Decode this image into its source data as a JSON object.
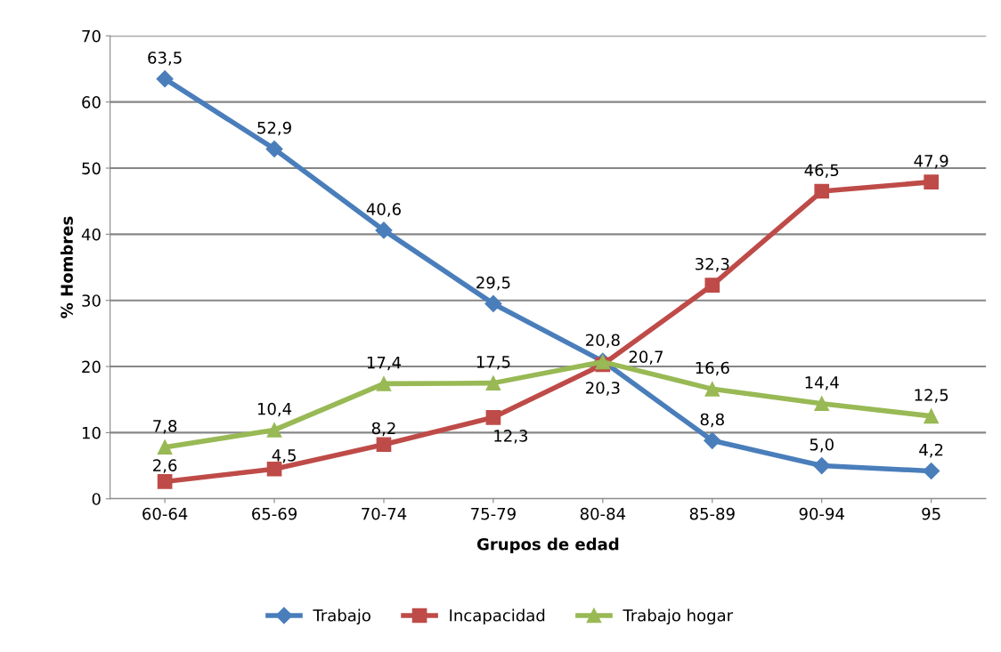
{
  "chart_data": {
    "type": "line",
    "xlabel": "Grupos de edad",
    "ylabel": "% Hombres",
    "categories": [
      "60-64",
      "65-69",
      "70-74",
      "75-79",
      "80-84",
      "85-89",
      "90-94",
      "95"
    ],
    "series": [
      {
        "name": "Trabajo",
        "color": "#4a7ebb",
        "marker": "diamond",
        "values": [
          63.5,
          52.9,
          40.6,
          29.5,
          20.8,
          8.8,
          5.0,
          4.2
        ],
        "value_labels": [
          "63,5",
          "52,9",
          "40,6",
          "29,5",
          "20,8",
          "8,8",
          "5,0",
          "4,2"
        ]
      },
      {
        "name": "Incapacidad",
        "color": "#be4b48",
        "marker": "square",
        "values": [
          2.6,
          4.5,
          8.2,
          12.3,
          20.3,
          32.3,
          46.5,
          47.9
        ],
        "value_labels": [
          "2,6",
          "4,5",
          "8,2",
          "12,3",
          "20,3",
          "32,3",
          "46,5",
          "47,9"
        ]
      },
      {
        "name": "Trabajo hogar",
        "color": "#98b954",
        "marker": "triangle",
        "values": [
          7.8,
          10.4,
          17.4,
          17.5,
          20.7,
          16.6,
          14.4,
          12.5
        ],
        "value_labels": [
          "7,8",
          "10,4",
          "17,4",
          "17,5",
          "20,7",
          "16,6",
          "14,4",
          "12,5"
        ]
      }
    ],
    "ylim": [
      0,
      70
    ],
    "yticks": [
      0,
      10,
      20,
      30,
      40,
      50,
      60,
      70
    ],
    "grid": "y",
    "legend": "bottom",
    "line_style": "solid"
  }
}
